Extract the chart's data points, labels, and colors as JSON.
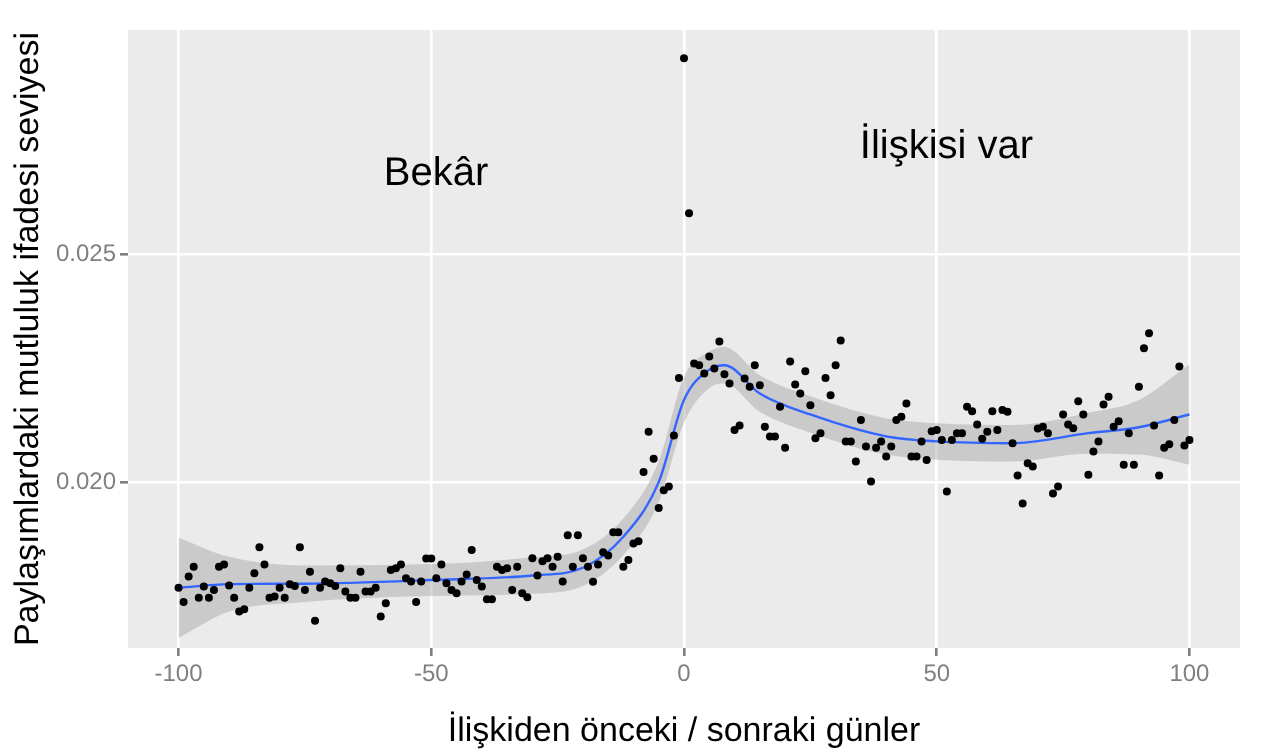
{
  "chart_data": {
    "type": "scatter",
    "xlabel": "İlişkiden önceki / sonraki günler",
    "ylabel": "Paylaşımlardaki mutluluk ifadesi seviyesi",
    "xlim": [
      -110,
      110
    ],
    "ylim": [
      0.01636,
      0.02991
    ],
    "xticks": [
      -100,
      -50,
      0,
      50,
      100
    ],
    "yticks": [
      {
        "value": 0.02,
        "label": "0.020"
      },
      {
        "value": 0.025,
        "label": "0.025"
      }
    ],
    "grid": true,
    "annotations": [
      "Bekâr",
      "İlişkisi var"
    ],
    "series": [
      {
        "marker": "circle",
        "color": "#000000",
        "x": [
          -100,
          -99,
          -98,
          -97,
          -96,
          -95,
          -94,
          -93,
          -92,
          -91,
          -90,
          -89,
          -88,
          -87,
          -86,
          -85,
          -84,
          -83,
          -82,
          -81,
          -80,
          -79,
          -78,
          -77,
          -76,
          -75,
          -74,
          -73,
          -72,
          -71,
          -70,
          -69,
          -68,
          -67,
          -66,
          -65,
          -64,
          -63,
          -62,
          -61,
          -60,
          -59,
          -58,
          -57,
          -56,
          -55,
          -54,
          -53,
          -52,
          -51,
          -50,
          -49,
          -48,
          -47,
          -46,
          -45,
          -44,
          -43,
          -42,
          -41,
          -40,
          -39,
          -38,
          -37,
          -36,
          -35,
          -34,
          -33,
          -32,
          -31,
          -30,
          -29,
          -28,
          -27,
          -26,
          -25,
          -24,
          -23,
          -22,
          -21,
          -20,
          -19,
          -18,
          -17,
          -16,
          -15,
          -14,
          -13,
          -12,
          -11,
          -10,
          -9,
          -8,
          -7,
          -6,
          -5,
          -4,
          -3,
          -2,
          -1,
          0,
          1,
          2,
          3,
          4,
          5,
          6,
          7,
          8,
          9,
          10,
          11,
          12,
          13,
          14,
          15,
          16,
          17,
          18,
          19,
          20,
          21,
          22,
          23,
          24,
          25,
          26,
          27,
          28,
          29,
          30,
          31,
          32,
          33,
          34,
          35,
          36,
          37,
          38,
          39,
          40,
          41,
          42,
          43,
          44,
          45,
          46,
          47,
          48,
          49,
          50,
          51,
          52,
          53,
          54,
          55,
          56,
          57,
          58,
          59,
          60,
          61,
          62,
          63,
          64,
          65,
          66,
          67,
          68,
          69,
          70,
          71,
          72,
          73,
          74,
          75,
          76,
          77,
          78,
          79,
          80,
          81,
          82,
          83,
          84,
          85,
          86,
          87,
          88,
          89,
          90,
          91,
          92,
          93,
          94,
          95,
          96,
          97,
          98,
          99,
          100
        ],
        "values": [
          0.01768,
          0.01737,
          0.01793,
          0.01814,
          0.01746,
          0.01771,
          0.01746,
          0.01763,
          0.01814,
          0.01819,
          0.01773,
          0.01746,
          0.01716,
          0.01721,
          0.01768,
          0.018,
          0.01857,
          0.01819,
          0.01746,
          0.01749,
          0.01768,
          0.01746,
          0.01776,
          0.01772,
          0.01857,
          0.01763,
          0.01803,
          0.01696,
          0.01768,
          0.01782,
          0.01778,
          0.01772,
          0.01811,
          0.0176,
          0.01746,
          0.01746,
          0.01803,
          0.0176,
          0.0176,
          0.01768,
          0.01705,
          0.01734,
          0.01807,
          0.01811,
          0.01819,
          0.01789,
          0.01782,
          0.01737,
          0.01782,
          0.01832,
          0.01832,
          0.01789,
          0.01819,
          0.01778,
          0.01763,
          0.01756,
          0.01782,
          0.01797,
          0.01851,
          0.01785,
          0.01771,
          0.01743,
          0.01743,
          0.01814,
          0.01807,
          0.01811,
          0.01763,
          0.01814,
          0.01756,
          0.01747,
          0.01833,
          0.01795,
          0.01826,
          0.01833,
          0.01814,
          0.01836,
          0.01782,
          0.01883,
          0.01814,
          0.01883,
          0.01833,
          0.01814,
          0.01781,
          0.01819,
          0.01846,
          0.01839,
          0.0189,
          0.0189,
          0.01814,
          0.01829,
          0.01865,
          0.0187,
          0.02022,
          0.0211,
          0.02051,
          0.01943,
          0.01982,
          0.0199,
          0.02102,
          0.02228,
          0.02929,
          0.02589,
          0.0226,
          0.02256,
          0.02238,
          0.02275,
          0.02249,
          0.02308,
          0.02236,
          0.02216,
          0.02114,
          0.02124,
          0.02227,
          0.02209,
          0.02256,
          0.02212,
          0.02121,
          0.021,
          0.021,
          0.02165,
          0.02075,
          0.02264,
          0.02214,
          0.02194,
          0.02243,
          0.02168,
          0.02096,
          0.02107,
          0.02228,
          0.0219,
          0.02256,
          0.0231,
          0.02089,
          0.02089,
          0.02045,
          0.02136,
          0.02078,
          0.02001,
          0.02075,
          0.02089,
          0.02056,
          0.02078,
          0.02136,
          0.02143,
          0.02172,
          0.02056,
          0.02056,
          0.02089,
          0.02048,
          0.02111,
          0.02114,
          0.02092,
          0.01979,
          0.02092,
          0.02107,
          0.02107,
          0.02165,
          0.02155,
          0.02126,
          0.02095,
          0.0211,
          0.02155,
          0.02114,
          0.02158,
          0.02154,
          0.02085,
          0.02014,
          0.01953,
          0.02041,
          0.02034,
          0.02117,
          0.02121,
          0.02107,
          0.01975,
          0.0199,
          0.02148,
          0.02126,
          0.02118,
          0.02177,
          0.02148,
          0.02016,
          0.02067,
          0.02089,
          0.0217,
          0.02187,
          0.02121,
          0.02133,
          0.02038,
          0.02107,
          0.02038,
          0.02209,
          0.02293,
          0.02326,
          0.02124,
          0.02014,
          0.02075,
          0.02083,
          0.02136,
          0.02253,
          0.0208,
          0.02092
        ]
      },
      {
        "type": "line",
        "marker": "none",
        "color": "#3366ff",
        "x": [
          -100,
          -90,
          -75,
          -50,
          -30,
          -20,
          -12,
          -5,
          0,
          5,
          8,
          15,
          25,
          40,
          50,
          65,
          80,
          90,
          100
        ],
        "values": [
          0.01768,
          0.01776,
          0.01777,
          0.01785,
          0.01795,
          0.01812,
          0.0188,
          0.02,
          0.0218,
          0.02246,
          0.02256,
          0.02194,
          0.02148,
          0.021,
          0.02089,
          0.02085,
          0.02107,
          0.0212,
          0.02148
        ],
        "lower": [
          0.01658,
          0.01716,
          0.01737,
          0.0175,
          0.01755,
          0.01772,
          0.0184,
          0.01955,
          0.0213,
          0.02206,
          0.02216,
          0.02154,
          0.02108,
          0.0206,
          0.02049,
          0.02045,
          0.02062,
          0.0206,
          0.02038
        ],
        "upper": [
          0.01878,
          0.01836,
          0.01817,
          0.0182,
          0.01835,
          0.01852,
          0.0192,
          0.02045,
          0.0223,
          0.02286,
          0.02296,
          0.02234,
          0.02188,
          0.0214,
          0.02129,
          0.02125,
          0.02152,
          0.0218,
          0.02258
        ]
      }
    ]
  }
}
